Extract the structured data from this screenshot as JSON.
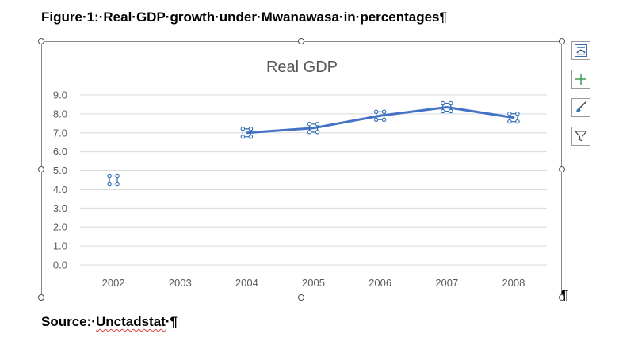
{
  "document": {
    "heading": "Figure·1:·Real·GDP·growth·under·Mwanawasa·in·percentages¶",
    "source_prefix": "Source:·",
    "source_name": "Unctadstat",
    "source_suffix": "·¶",
    "pilcrow": "¶"
  },
  "chart_tools": {
    "layout_icon": "chart-layout-icon",
    "elements_icon": "plus-icon",
    "styles_icon": "brush-icon",
    "filters_icon": "filter-icon"
  },
  "colors": {
    "series": "#4472c4",
    "grid": "#d9d9d9",
    "tick_text": "#595959",
    "title_text": "#595959"
  },
  "chart_data": {
    "type": "line",
    "title": "Real GDP",
    "xlabel": "",
    "ylabel": "",
    "categories": [
      "2002",
      "2003",
      "2004",
      "2005",
      "2006",
      "2007",
      "2008"
    ],
    "series": [
      {
        "values": [
          4.5,
          null,
          7.0,
          7.25,
          7.9,
          8.35,
          7.8
        ]
      }
    ],
    "ylim": [
      0,
      9
    ],
    "yticks": [
      "0.0",
      "1.0",
      "2.0",
      "3.0",
      "4.0",
      "5.0",
      "6.0",
      "7.0",
      "8.0",
      "9.0"
    ],
    "grid": true,
    "legend": "none",
    "series_selected": true
  }
}
